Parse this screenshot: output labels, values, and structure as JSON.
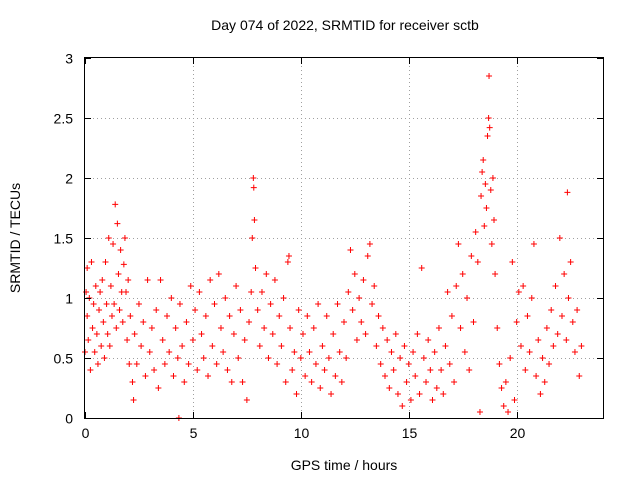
{
  "chart_data": {
    "type": "scatter",
    "title": "Day 074 of 2022, SRMTID for receiver sctb",
    "xlabel": "GPS time / hours",
    "ylabel": "SRMTID / TECUs",
    "xlim": [
      0,
      24
    ],
    "ylim": [
      0,
      3
    ],
    "xticks": [
      0,
      5,
      10,
      15,
      20
    ],
    "xtick_labels": [
      "0",
      "5",
      "10",
      "15",
      "20"
    ],
    "yticks": [
      0,
      0.5,
      1,
      1.5,
      2,
      2.5,
      3
    ],
    "ytick_labels": [
      "0",
      "0.5",
      "1",
      "1.5",
      "2",
      "2.5",
      "3"
    ],
    "grid": true,
    "marker": "+",
    "color": "#ff0000",
    "series": [
      {
        "name": "SRMTID",
        "points": [
          [
            0.0,
            0.55
          ],
          [
            0.05,
            1.05
          ],
          [
            0.1,
            0.85
          ],
          [
            0.1,
            1.25
          ],
          [
            0.15,
            0.65
          ],
          [
            0.2,
            1.0
          ],
          [
            0.25,
            0.4
          ],
          [
            0.3,
            1.3
          ],
          [
            0.35,
            0.75
          ],
          [
            0.4,
            0.95
          ],
          [
            0.45,
            0.55
          ],
          [
            0.5,
            1.1
          ],
          [
            0.55,
            0.7
          ],
          [
            0.6,
            0.45
          ],
          [
            0.65,
            0.9
          ],
          [
            0.7,
            1.05
          ],
          [
            0.75,
            0.6
          ],
          [
            0.8,
            1.15
          ],
          [
            0.85,
            0.8
          ],
          [
            0.9,
            0.5
          ],
          [
            0.95,
            1.3
          ],
          [
            1.0,
            0.95
          ],
          [
            1.05,
            0.7
          ],
          [
            1.1,
            1.5
          ],
          [
            1.15,
            0.6
          ],
          [
            1.2,
            1.1
          ],
          [
            1.25,
            0.85
          ],
          [
            1.3,
            1.45
          ],
          [
            1.35,
            0.95
          ],
          [
            1.4,
            1.78
          ],
          [
            1.45,
            0.75
          ],
          [
            1.5,
            1.62
          ],
          [
            1.55,
            1.2
          ],
          [
            1.6,
            0.9
          ],
          [
            1.65,
            1.4
          ],
          [
            1.7,
            1.05
          ],
          [
            1.75,
            0.8
          ],
          [
            1.8,
            1.28
          ],
          [
            1.85,
            1.5
          ],
          [
            1.9,
            1.05
          ],
          [
            1.95,
            0.65
          ],
          [
            2.0,
            1.15
          ],
          [
            2.05,
            0.45
          ],
          [
            2.1,
            0.85
          ],
          [
            2.2,
            0.3
          ],
          [
            2.25,
            0.15
          ],
          [
            2.3,
            0.7
          ],
          [
            2.4,
            0.45
          ],
          [
            2.5,
            0.95
          ],
          [
            2.6,
            0.6
          ],
          [
            2.7,
            0.8
          ],
          [
            2.8,
            0.35
          ],
          [
            2.9,
            1.15
          ],
          [
            3.0,
            0.55
          ],
          [
            3.1,
            0.75
          ],
          [
            3.2,
            0.4
          ],
          [
            3.3,
            0.9
          ],
          [
            3.4,
            0.25
          ],
          [
            3.5,
            1.15
          ],
          [
            3.6,
            0.65
          ],
          [
            3.7,
            0.45
          ],
          [
            3.8,
            0.85
          ],
          [
            3.9,
            0.55
          ],
          [
            4.0,
            1.0
          ],
          [
            4.1,
            0.35
          ],
          [
            4.2,
            0.75
          ],
          [
            4.3,
            0.5
          ],
          [
            4.35,
            0.0
          ],
          [
            4.4,
            0.95
          ],
          [
            4.5,
            0.6
          ],
          [
            4.6,
            0.3
          ],
          [
            4.7,
            0.8
          ],
          [
            4.8,
            0.45
          ],
          [
            4.9,
            1.1
          ],
          [
            5.0,
            0.65
          ],
          [
            5.1,
            0.9
          ],
          [
            5.2,
            0.4
          ],
          [
            5.3,
            1.05
          ],
          [
            5.4,
            0.7
          ],
          [
            5.5,
            0.5
          ],
          [
            5.6,
            0.85
          ],
          [
            5.7,
            0.35
          ],
          [
            5.8,
            1.15
          ],
          [
            5.9,
            0.6
          ],
          [
            6.0,
            0.95
          ],
          [
            6.1,
            0.45
          ],
          [
            6.2,
            1.2
          ],
          [
            6.3,
            0.75
          ],
          [
            6.4,
            0.55
          ],
          [
            6.5,
            1.0
          ],
          [
            6.6,
            0.4
          ],
          [
            6.7,
            0.85
          ],
          [
            6.8,
            0.3
          ],
          [
            6.9,
            0.7
          ],
          [
            7.0,
            1.1
          ],
          [
            7.1,
            0.5
          ],
          [
            7.2,
            0.9
          ],
          [
            7.3,
            0.3
          ],
          [
            7.4,
            0.65
          ],
          [
            7.5,
            0.15
          ],
          [
            7.6,
            0.8
          ],
          [
            7.7,
            1.05
          ],
          [
            7.75,
            1.5
          ],
          [
            7.8,
            2.0
          ],
          [
            7.82,
            1.92
          ],
          [
            7.85,
            1.65
          ],
          [
            7.9,
            1.25
          ],
          [
            8.0,
            0.9
          ],
          [
            8.1,
            0.6
          ],
          [
            8.2,
            1.05
          ],
          [
            8.3,
            0.75
          ],
          [
            8.4,
            1.2
          ],
          [
            8.5,
            0.5
          ],
          [
            8.6,
            0.95
          ],
          [
            8.7,
            0.7
          ],
          [
            8.8,
            1.15
          ],
          [
            8.9,
            0.45
          ],
          [
            9.0,
            0.85
          ],
          [
            9.1,
            0.6
          ],
          [
            9.2,
            1.0
          ],
          [
            9.3,
            0.3
          ],
          [
            9.4,
            1.3
          ],
          [
            9.45,
            1.35
          ],
          [
            9.5,
            0.75
          ],
          [
            9.6,
            0.4
          ],
          [
            9.7,
            0.55
          ],
          [
            9.8,
            0.2
          ],
          [
            9.9,
            0.9
          ],
          [
            10.0,
            0.5
          ],
          [
            10.1,
            0.7
          ],
          [
            10.2,
            0.35
          ],
          [
            10.3,
            0.85
          ],
          [
            10.4,
            0.55
          ],
          [
            10.5,
            0.3
          ],
          [
            10.6,
            0.75
          ],
          [
            10.7,
            0.45
          ],
          [
            10.8,
            0.95
          ],
          [
            10.9,
            0.25
          ],
          [
            11.0,
            0.6
          ],
          [
            11.1,
            0.4
          ],
          [
            11.2,
            0.85
          ],
          [
            11.3,
            0.5
          ],
          [
            11.4,
            0.2
          ],
          [
            11.5,
            0.7
          ],
          [
            11.6,
            0.35
          ],
          [
            11.7,
            0.95
          ],
          [
            11.8,
            0.55
          ],
          [
            11.9,
            0.3
          ],
          [
            12.0,
            0.8
          ],
          [
            12.1,
            0.5
          ],
          [
            12.2,
            1.05
          ],
          [
            12.3,
            1.4
          ],
          [
            12.4,
            0.9
          ],
          [
            12.5,
            1.2
          ],
          [
            12.6,
            0.65
          ],
          [
            12.7,
            1.0
          ],
          [
            12.8,
            0.8
          ],
          [
            12.9,
            1.15
          ],
          [
            13.0,
            0.7
          ],
          [
            13.1,
            1.35
          ],
          [
            13.2,
            1.45
          ],
          [
            13.3,
            0.95
          ],
          [
            13.4,
            1.1
          ],
          [
            13.5,
            0.6
          ],
          [
            13.6,
            0.85
          ],
          [
            13.7,
            0.45
          ],
          [
            13.8,
            0.75
          ],
          [
            13.9,
            0.35
          ],
          [
            14.0,
            0.65
          ],
          [
            14.1,
            0.25
          ],
          [
            14.2,
            0.55
          ],
          [
            14.3,
            0.4
          ],
          [
            14.4,
            0.7
          ],
          [
            14.5,
            0.2
          ],
          [
            14.6,
            0.5
          ],
          [
            14.7,
            0.1
          ],
          [
            14.8,
            0.6
          ],
          [
            14.9,
            0.3
          ],
          [
            15.0,
            0.45
          ],
          [
            15.1,
            0.15
          ],
          [
            15.2,
            0.55
          ],
          [
            15.3,
            0.35
          ],
          [
            15.4,
            0.7
          ],
          [
            15.5,
            0.2
          ],
          [
            15.6,
            1.25
          ],
          [
            15.7,
            0.5
          ],
          [
            15.8,
            0.3
          ],
          [
            15.9,
            0.65
          ],
          [
            16.0,
            0.4
          ],
          [
            16.1,
            0.15
          ],
          [
            16.2,
            0.55
          ],
          [
            16.3,
            0.25
          ],
          [
            16.4,
            0.75
          ],
          [
            16.5,
            0.4
          ],
          [
            16.6,
            0.2
          ],
          [
            16.7,
            0.6
          ],
          [
            16.8,
            1.05
          ],
          [
            16.9,
            0.45
          ],
          [
            17.0,
            0.85
          ],
          [
            17.1,
            0.3
          ],
          [
            17.2,
            1.1
          ],
          [
            17.3,
            1.45
          ],
          [
            17.4,
            0.75
          ],
          [
            17.5,
            1.2
          ],
          [
            17.6,
            0.55
          ],
          [
            17.7,
            1.0
          ],
          [
            17.8,
            0.4
          ],
          [
            17.9,
            1.35
          ],
          [
            18.0,
            0.8
          ],
          [
            18.1,
            1.55
          ],
          [
            18.2,
            1.3
          ],
          [
            18.3,
            0.05
          ],
          [
            18.35,
            1.85
          ],
          [
            18.4,
            2.05
          ],
          [
            18.45,
            2.15
          ],
          [
            18.5,
            1.6
          ],
          [
            18.55,
            1.95
          ],
          [
            18.6,
            1.75
          ],
          [
            18.65,
            2.35
          ],
          [
            18.7,
            2.5
          ],
          [
            18.72,
            2.85
          ],
          [
            18.75,
            2.42
          ],
          [
            18.8,
            1.9
          ],
          [
            18.85,
            1.45
          ],
          [
            18.9,
            2.0
          ],
          [
            18.95,
            1.65
          ],
          [
            19.0,
            1.2
          ],
          [
            19.1,
            0.75
          ],
          [
            19.2,
            0.45
          ],
          [
            19.3,
            0.25
          ],
          [
            19.4,
            0.1
          ],
          [
            19.5,
            0.3
          ],
          [
            19.6,
            0.05
          ],
          [
            19.7,
            0.5
          ],
          [
            19.8,
            1.3
          ],
          [
            19.9,
            0.15
          ],
          [
            20.0,
            0.8
          ],
          [
            20.1,
            1.05
          ],
          [
            20.2,
            0.6
          ],
          [
            20.3,
            1.1
          ],
          [
            20.4,
            0.4
          ],
          [
            20.5,
            0.85
          ],
          [
            20.6,
            0.55
          ],
          [
            20.7,
            1.0
          ],
          [
            20.8,
            1.45
          ],
          [
            20.9,
            0.35
          ],
          [
            21.0,
            0.65
          ],
          [
            21.1,
            0.2
          ],
          [
            21.2,
            0.5
          ],
          [
            21.3,
            0.3
          ],
          [
            21.4,
            0.75
          ],
          [
            21.5,
            0.45
          ],
          [
            21.6,
            0.9
          ],
          [
            21.7,
            0.6
          ],
          [
            21.8,
            1.1
          ],
          [
            21.9,
            0.7
          ],
          [
            22.0,
            1.5
          ],
          [
            22.1,
            0.85
          ],
          [
            22.2,
            1.2
          ],
          [
            22.3,
            0.65
          ],
          [
            22.35,
            1.88
          ],
          [
            22.4,
            1.0
          ],
          [
            22.5,
            1.3
          ],
          [
            22.6,
            0.8
          ],
          [
            22.7,
            0.55
          ],
          [
            22.8,
            0.9
          ],
          [
            22.9,
            0.35
          ],
          [
            23.0,
            0.6
          ]
        ]
      }
    ]
  }
}
